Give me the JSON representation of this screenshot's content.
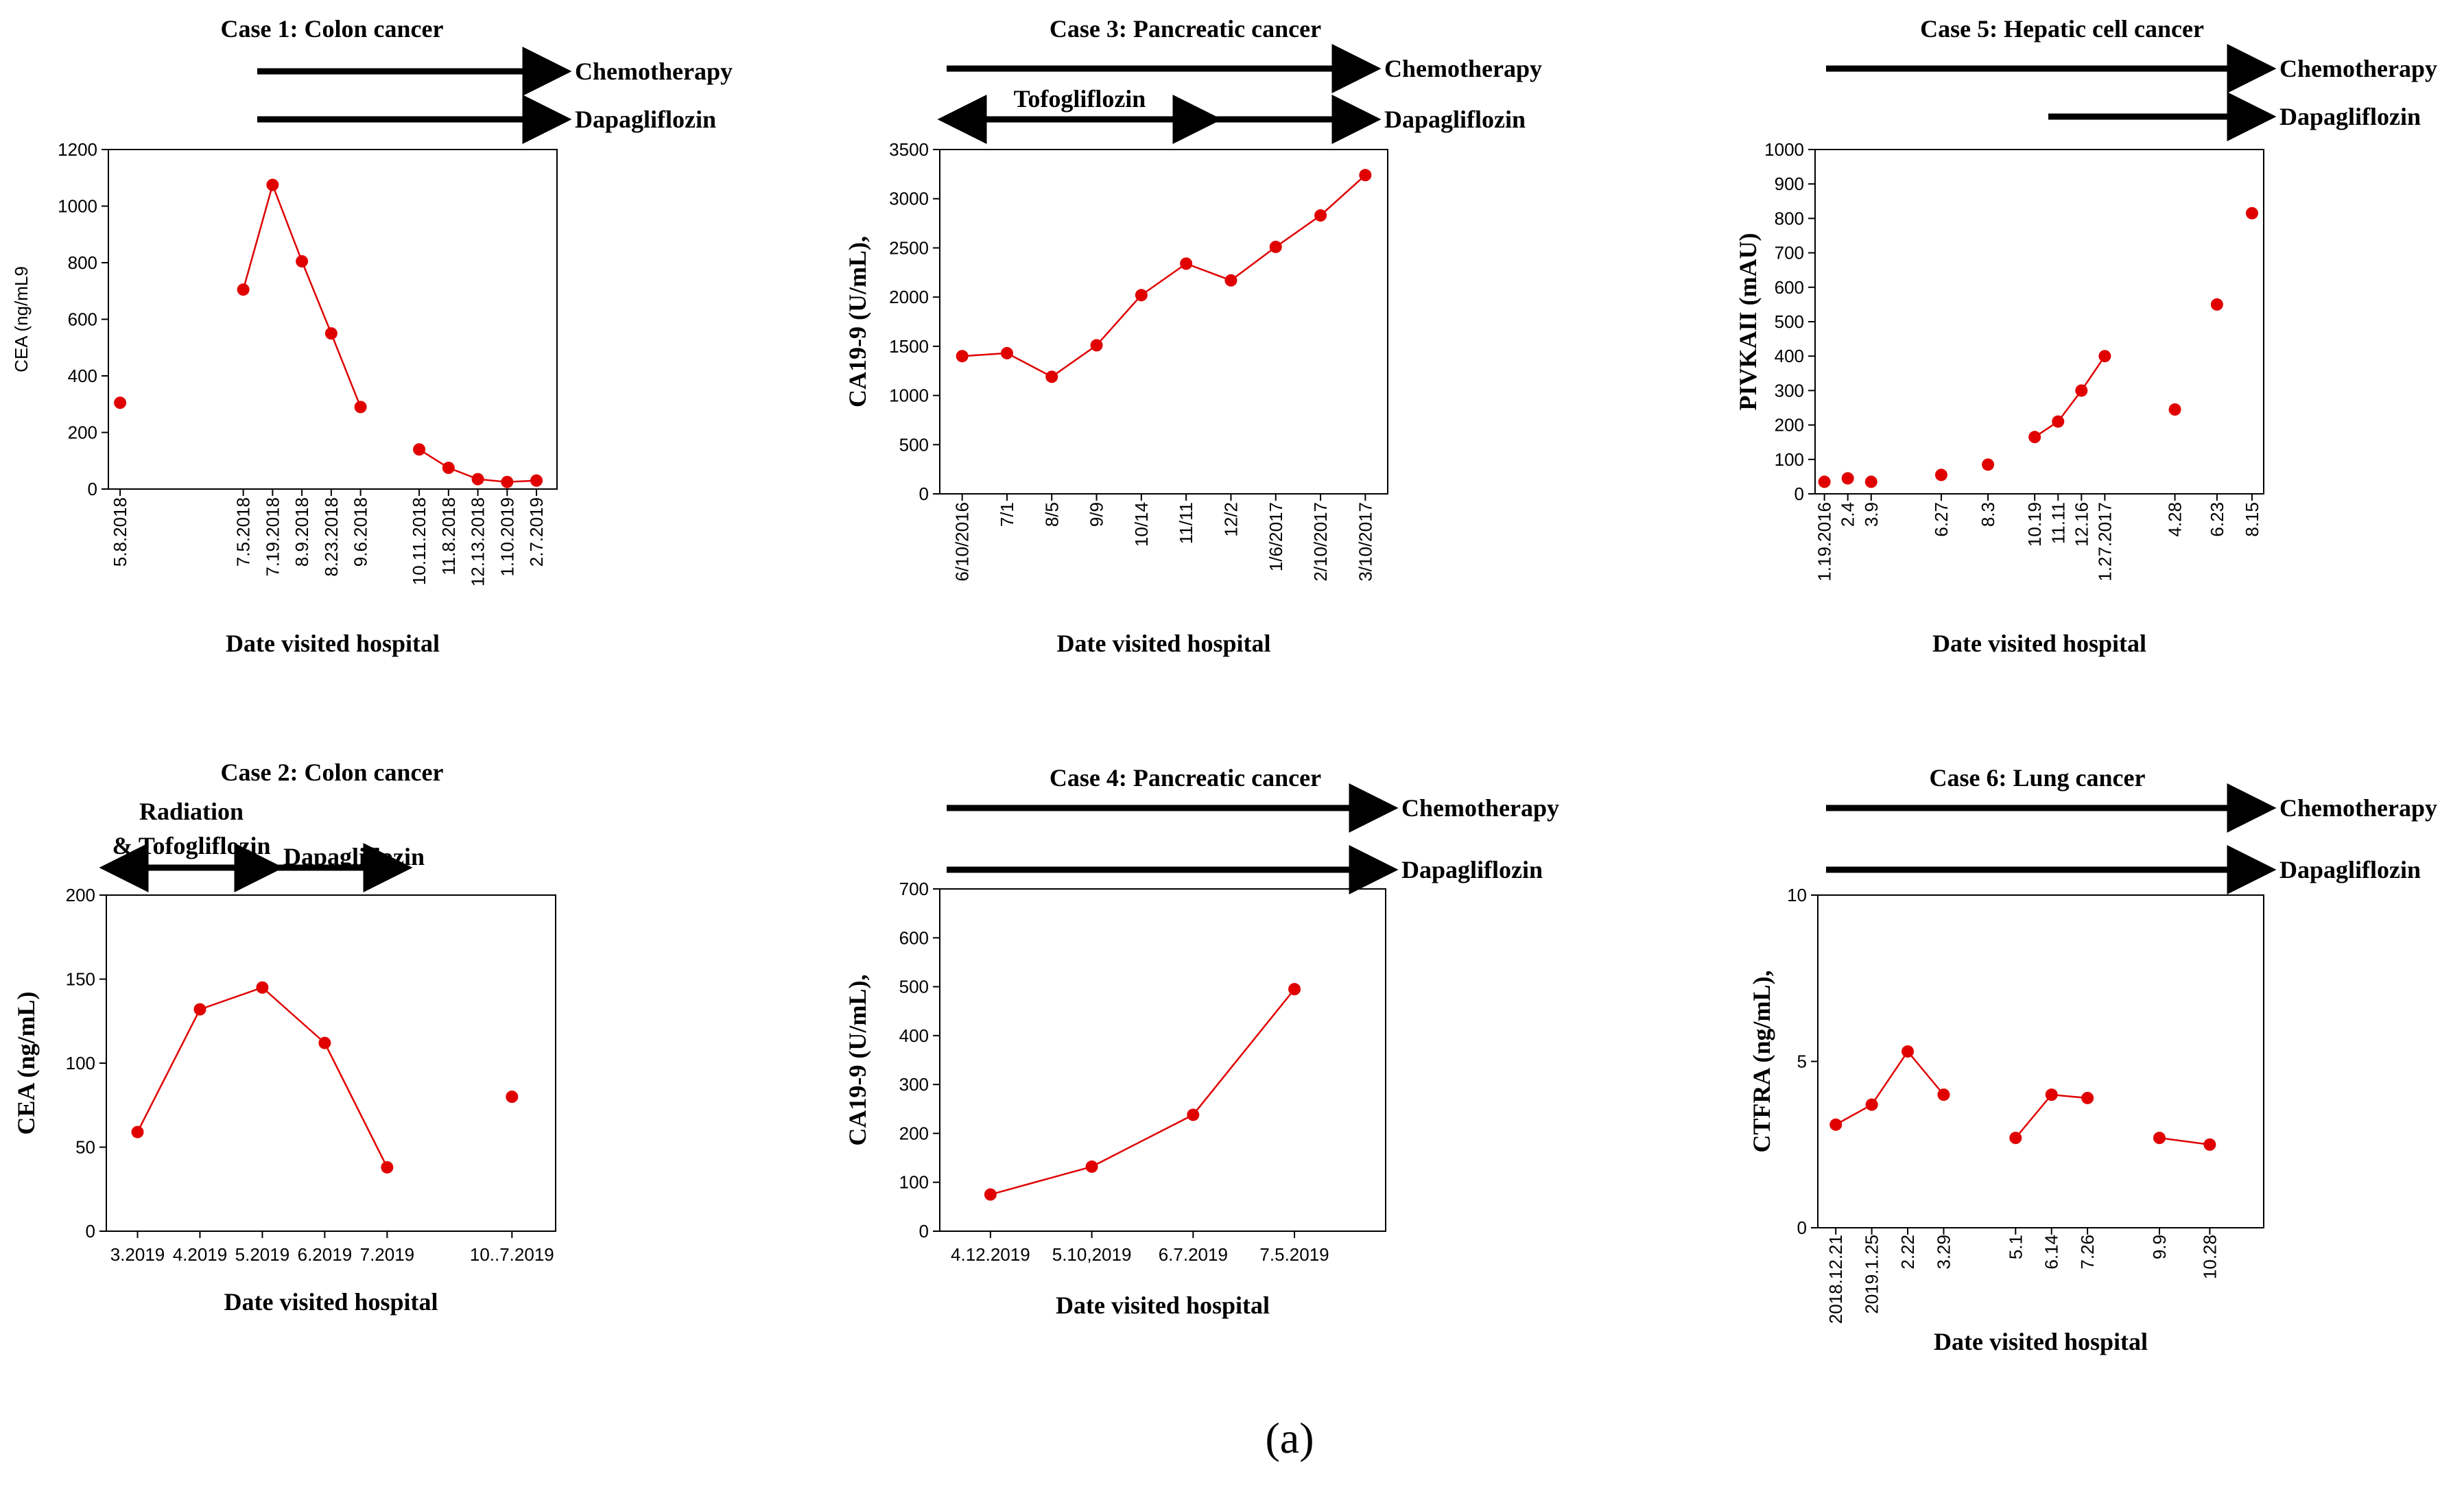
{
  "panel_label": "(a)",
  "colors": {
    "series": "#e00000",
    "axis": "#000000",
    "background": "#ffffff"
  },
  "chart_data": [
    {
      "id": "case1",
      "type": "line",
      "title": "Case 1: Colon cancer",
      "xlabel": "Date visited hospital",
      "ylabel": "CEA (ng/mL9",
      "ylim": [
        0,
        1200
      ],
      "yticks": [
        0,
        200,
        400,
        600,
        800,
        1000,
        1200
      ],
      "xlim": [
        0,
        15.3
      ],
      "xtick_labels": [
        {
          "x": 0.4,
          "label": "5.8.2018"
        },
        {
          "x": 4.6,
          "label": "7.5.2018"
        },
        {
          "x": 5.6,
          "label": "7.19.2018"
        },
        {
          "x": 6.6,
          "label": "8.9.2018"
        },
        {
          "x": 7.6,
          "label": "8.23.2018"
        },
        {
          "x": 8.6,
          "label": "9.6.2018"
        },
        {
          "x": 10.6,
          "label": "10.11.2018"
        },
        {
          "x": 11.6,
          "label": "11.8.2018"
        },
        {
          "x": 12.6,
          "label": "12.13.2018"
        },
        {
          "x": 13.6,
          "label": "1.10.2019"
        },
        {
          "x": 14.6,
          "label": "2.7.2019"
        }
      ],
      "points": [
        {
          "x": 0.4,
          "y": 305
        },
        {
          "x": 4.6,
          "y": 705
        },
        {
          "x": 5.6,
          "y": 1075
        },
        {
          "x": 6.6,
          "y": 805
        },
        {
          "x": 7.6,
          "y": 550
        },
        {
          "x": 8.6,
          "y": 290
        },
        {
          "x": 10.6,
          "y": 140
        },
        {
          "x": 11.6,
          "y": 75
        },
        {
          "x": 12.6,
          "y": 35
        },
        {
          "x": 13.6,
          "y": 25
        },
        {
          "x": 14.6,
          "y": 30
        }
      ],
      "segments": [
        [
          1,
          2,
          3,
          4,
          5
        ],
        [
          6,
          7,
          8,
          9,
          10
        ]
      ],
      "treatments": [
        {
          "label": "Chemotherapy",
          "from": 5.0,
          "to": 15.3,
          "head_start": false,
          "head_end": true,
          "row": 0
        },
        {
          "label": "Dapagliflozin",
          "from": 5.0,
          "to": 15.3,
          "head_start": false,
          "head_end": true,
          "row": 1
        }
      ]
    },
    {
      "id": "case3",
      "type": "line",
      "title": "Case 3: Pancreatic cancer",
      "xlabel": "Date visited hospital",
      "ylabel": "CA19-9 (U/mL),",
      "ylim": [
        0,
        3500
      ],
      "yticks": [
        0,
        500,
        1000,
        1500,
        2000,
        2500,
        3000,
        3500
      ],
      "xlim": [
        0,
        10
      ],
      "xtick_labels": [
        {
          "x": 0.5,
          "label": "6/10/2016"
        },
        {
          "x": 1.5,
          "label": "7/1"
        },
        {
          "x": 2.5,
          "label": "8/5"
        },
        {
          "x": 3.5,
          "label": "9/9"
        },
        {
          "x": 4.5,
          "label": "10/14"
        },
        {
          "x": 5.5,
          "label": "11/11"
        },
        {
          "x": 6.5,
          "label": "12/2"
        },
        {
          "x": 7.5,
          "label": "1/6/2017"
        },
        {
          "x": 8.5,
          "label": "2/10/2017"
        },
        {
          "x": 9.5,
          "label": "3/10/2017"
        }
      ],
      "points": [
        {
          "x": 0.5,
          "y": 1400
        },
        {
          "x": 1.5,
          "y": 1430
        },
        {
          "x": 2.5,
          "y": 1190
        },
        {
          "x": 3.5,
          "y": 1510
        },
        {
          "x": 4.5,
          "y": 2020
        },
        {
          "x": 5.5,
          "y": 2340
        },
        {
          "x": 6.5,
          "y": 2170
        },
        {
          "x": 7.5,
          "y": 2510
        },
        {
          "x": 8.5,
          "y": 2830
        },
        {
          "x": 9.5,
          "y": 3240
        }
      ],
      "segments": [
        [
          0,
          1,
          2,
          3,
          4,
          5,
          6,
          7,
          8,
          9
        ]
      ],
      "treatments": [
        {
          "label": "Chemotherapy",
          "from": 0.2,
          "to": 9.8,
          "head_start": false,
          "head_end": true,
          "row": 0
        },
        {
          "label": "Tofogliflozin",
          "from": 0.2,
          "to": 6.2,
          "head_start": true,
          "head_end": true,
          "row": 1,
          "label_pos": "above"
        },
        {
          "label": "Dapagliflozin",
          "from": 6.3,
          "to": 9.8,
          "head_start": false,
          "head_end": true,
          "row": 1
        }
      ]
    },
    {
      "id": "case5",
      "type": "line",
      "title": "Case 5: Hepatic cell cancer",
      "xlabel": "Date visited hospital",
      "ylabel": "PIVKAII (mAU)",
      "ylim": [
        0,
        1000
      ],
      "yticks": [
        0,
        100,
        200,
        300,
        400,
        500,
        600,
        700,
        800,
        900,
        1000
      ],
      "xlim": [
        0,
        19.2
      ],
      "xtick_labels": [
        {
          "x": 0.4,
          "label": "1.19.2016"
        },
        {
          "x": 1.4,
          "label": "2.4"
        },
        {
          "x": 2.4,
          "label": "3.9"
        },
        {
          "x": 5.4,
          "label": "6.27"
        },
        {
          "x": 7.4,
          "label": "8.3"
        },
        {
          "x": 9.4,
          "label": "10.19"
        },
        {
          "x": 10.4,
          "label": "11.11"
        },
        {
          "x": 11.4,
          "label": "12.16"
        },
        {
          "x": 12.4,
          "label": "1.27.2017"
        },
        {
          "x": 15.4,
          "label": "4.28"
        },
        {
          "x": 17.2,
          "label": "6.23"
        },
        {
          "x": 18.7,
          "label": "8.15"
        }
      ],
      "points": [
        {
          "x": 0.4,
          "y": 35
        },
        {
          "x": 1.4,
          "y": 45
        },
        {
          "x": 2.4,
          "y": 35
        },
        {
          "x": 5.4,
          "y": 55
        },
        {
          "x": 7.4,
          "y": 85
        },
        {
          "x": 9.4,
          "y": 165
        },
        {
          "x": 10.4,
          "y": 210
        },
        {
          "x": 11.4,
          "y": 300
        },
        {
          "x": 12.4,
          "y": 400
        },
        {
          "x": 15.4,
          "y": 245
        },
        {
          "x": 17.2,
          "y": 550
        },
        {
          "x": 18.7,
          "y": 815
        }
      ],
      "segments": [
        [
          5,
          6,
          7,
          8
        ]
      ],
      "treatments": [
        {
          "label": "Chemotherapy",
          "from": 0.0,
          "to": 19.2,
          "head_start": false,
          "head_end": true,
          "row": 0
        },
        {
          "label": "Dapagliflozin",
          "from": 9.5,
          "to": 19.2,
          "head_start": false,
          "head_end": true,
          "row": 1
        }
      ]
    },
    {
      "id": "case2",
      "type": "line",
      "title": "Case 2: Colon cancer",
      "xlabel": "Date visited hospital",
      "ylabel": "CEA (ng/mL)",
      "ylim": [
        0,
        200
      ],
      "yticks": [
        0,
        50,
        100,
        150,
        200
      ],
      "xlim": [
        0,
        7.2
      ],
      "xtick_labels": [
        {
          "x": 0.5,
          "label": "3.2019"
        },
        {
          "x": 1.5,
          "label": "4.2019"
        },
        {
          "x": 2.5,
          "label": "5.2019"
        },
        {
          "x": 3.5,
          "label": "6.2019"
        },
        {
          "x": 4.5,
          "label": "7.2019"
        },
        {
          "x": 6.5,
          "label": "10..7.2019"
        }
      ],
      "points": [
        {
          "x": 0.5,
          "y": 59
        },
        {
          "x": 1.5,
          "y": 132
        },
        {
          "x": 2.5,
          "y": 145
        },
        {
          "x": 3.5,
          "y": 112
        },
        {
          "x": 4.5,
          "y": 38
        },
        {
          "x": 6.5,
          "y": 80
        }
      ],
      "segments": [
        [
          0,
          1,
          2,
          3,
          4
        ]
      ],
      "treatments": [
        {
          "label": "Radiation & Tofogliflozin",
          "label_lines": [
            "Radiation",
            "& Tofogliflozin"
          ],
          "from": 0.0,
          "to": 2.65,
          "head_start": true,
          "head_end": true,
          "row": 0,
          "label_pos": "above"
        },
        {
          "label": "Dapagliflozin",
          "from": 2.65,
          "to": 4.75,
          "head_start": false,
          "head_end": true,
          "row": 0,
          "label_pos": "above-right"
        }
      ]
    },
    {
      "id": "case4",
      "type": "line",
      "title": "Case 4: Pancreatic cancer",
      "xlabel": "Date visited hospital",
      "ylabel": "CA19-9 (U/mL),",
      "ylim": [
        0,
        700
      ],
      "yticks": [
        0,
        100,
        200,
        300,
        400,
        500,
        600,
        700
      ],
      "xlim": [
        0,
        4.4
      ],
      "xtick_labels": [
        {
          "x": 0.5,
          "label": "4.12.2019"
        },
        {
          "x": 1.5,
          "label": "5.10,2019"
        },
        {
          "x": 2.5,
          "label": "6.7.2019"
        },
        {
          "x": 3.5,
          "label": "7.5.2019"
        }
      ],
      "points": [
        {
          "x": 0.5,
          "y": 75
        },
        {
          "x": 1.5,
          "y": 132
        },
        {
          "x": 2.5,
          "y": 238
        },
        {
          "x": 3.5,
          "y": 495
        }
      ],
      "segments": [
        [
          0,
          1,
          2,
          3
        ]
      ],
      "treatments": [
        {
          "label": "Chemotherapy",
          "from": 0.0,
          "to": 4.9,
          "head_start": false,
          "head_end": true,
          "row": 0
        },
        {
          "label": "Dapagliflozin",
          "from": 0.0,
          "to": 4.9,
          "head_start": false,
          "head_end": true,
          "row": 1
        }
      ]
    },
    {
      "id": "case6",
      "type": "line",
      "title": "Case 6: Lung cancer",
      "xlabel": "Date visited hospital",
      "ylabel": "CTFRA (ng/mL),",
      "ylim": [
        0,
        10
      ],
      "yticks": [
        0,
        5,
        10
      ],
      "xlim": [
        0,
        12.4
      ],
      "xtick_labels": [
        {
          "x": 0.5,
          "label": "2018.12.21"
        },
        {
          "x": 1.5,
          "label": "2019.1.25"
        },
        {
          "x": 2.5,
          "label": "2.22"
        },
        {
          "x": 3.5,
          "label": "3.29"
        },
        {
          "x": 5.5,
          "label": "5.1"
        },
        {
          "x": 6.5,
          "label": "6.14"
        },
        {
          "x": 7.5,
          "label": "7.26"
        },
        {
          "x": 9.5,
          "label": "9.9"
        },
        {
          "x": 10.9,
          "label": "10.28"
        }
      ],
      "points": [
        {
          "x": 0.5,
          "y": 3.1
        },
        {
          "x": 1.5,
          "y": 3.7
        },
        {
          "x": 2.5,
          "y": 5.3
        },
        {
          "x": 3.5,
          "y": 4.0
        },
        {
          "x": 5.5,
          "y": 2.7
        },
        {
          "x": 6.5,
          "y": 4.0
        },
        {
          "x": 7.5,
          "y": 3.9
        },
        {
          "x": 9.5,
          "y": 2.7
        },
        {
          "x": 10.9,
          "y": 2.5
        }
      ],
      "segments": [
        [
          0,
          1,
          2,
          3
        ],
        [
          4,
          5,
          6
        ],
        [
          7,
          8
        ]
      ],
      "treatments": [
        {
          "label": "Chemotherapy",
          "from": 0.0,
          "to": 12.4,
          "head_start": false,
          "head_end": true,
          "row": 0
        },
        {
          "label": "Dapagliflozin",
          "from": 0.0,
          "to": 12.4,
          "head_start": false,
          "head_end": true,
          "row": 1
        }
      ]
    }
  ]
}
